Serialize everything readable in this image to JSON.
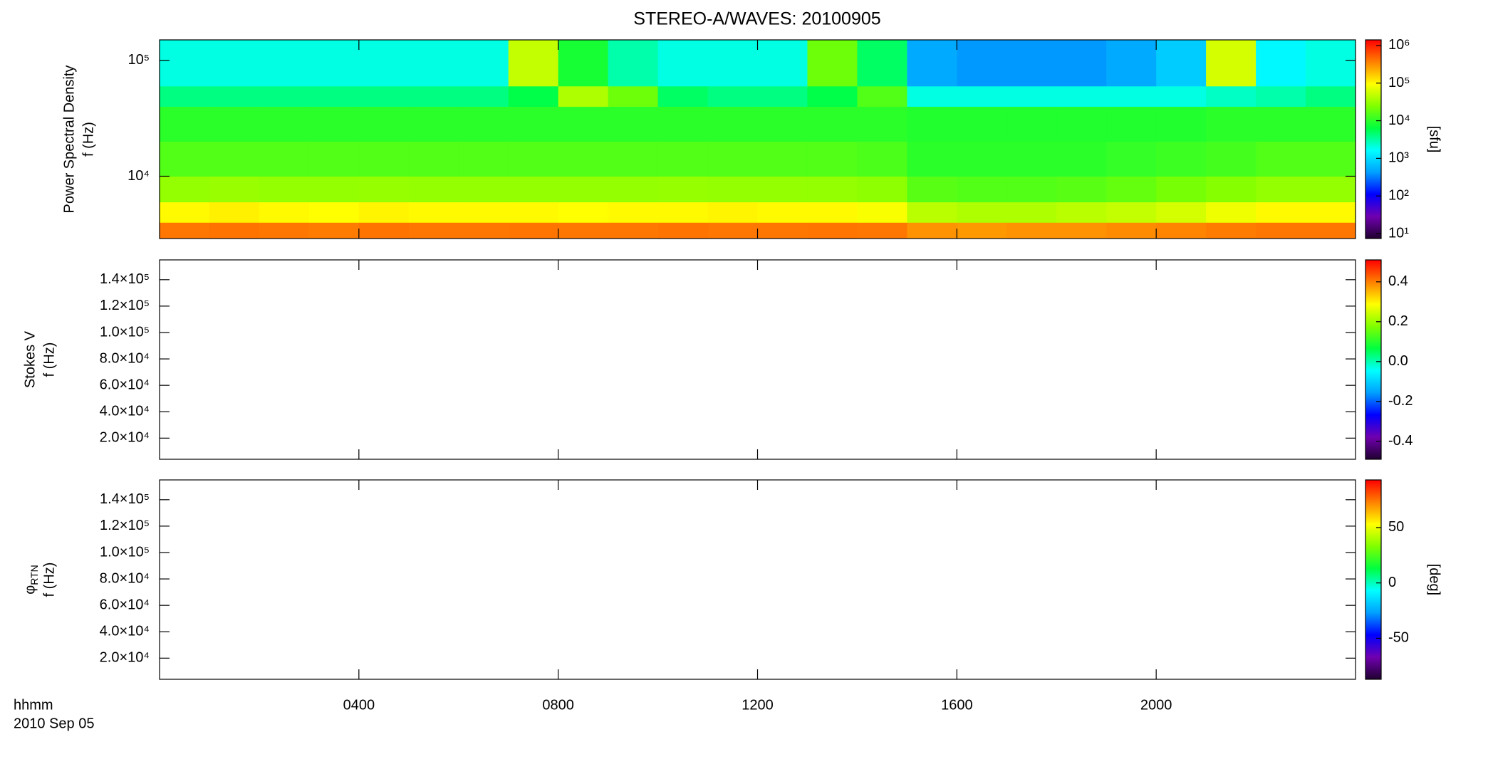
{
  "chart_data": {
    "type": "heatmap",
    "title": "STEREO-A/WAVES: 20100905",
    "x_label_lines": [
      "hhmm",
      "2010 Sep 05"
    ],
    "xlim": [
      0,
      24
    ],
    "xticks": [
      {
        "value": 4,
        "label": "0400"
      },
      {
        "value": 8,
        "label": "0800"
      },
      {
        "value": 12,
        "label": "1200"
      },
      {
        "value": 16,
        "label": "1600"
      },
      {
        "value": 20,
        "label": "2000"
      }
    ],
    "colormap": [
      "#200030",
      "#7000b0",
      "#0000ff",
      "#00a0ff",
      "#00ffff",
      "#00ff40",
      "#80ff00",
      "#ffff00",
      "#ff8000",
      "#ff0000"
    ],
    "panels": [
      {
        "ylabel": [
          "Power Spectral Density",
          "f (Hz)"
        ],
        "yscale": "log",
        "ylim": [
          2900,
          150000
        ],
        "yticks": [
          {
            "value": 10000,
            "label": "10⁴"
          },
          {
            "value": 100000,
            "label": "10⁵"
          }
        ],
        "colorbar": {
          "scale": "log",
          "clim": [
            7.4,
            1410000
          ],
          "label": "[sfu]",
          "ticks": [
            {
              "value": 10,
              "label": "10¹"
            },
            {
              "value": 100,
              "label": "10²"
            },
            {
              "value": 1000,
              "label": "10³"
            },
            {
              "value": 10000,
              "label": "10⁴"
            },
            {
              "value": 100000,
              "label": "10⁵"
            },
            {
              "value": 1000000,
              "label": "10⁶"
            }
          ]
        },
        "heatmap": {
          "x_bins": [
            0,
            1,
            2,
            3,
            4,
            5,
            6,
            7,
            8,
            9,
            10,
            11,
            12,
            13,
            14,
            15,
            16,
            17,
            18,
            19,
            20,
            21,
            22,
            23,
            24
          ],
          "y_bins": [
            2900,
            4000,
            6000,
            10000,
            20000,
            40000,
            60000,
            150000
          ],
          "values": [
            [
              400000,
              420000,
              400000,
              380000,
              420000,
              400000,
              400000,
              410000,
              400000,
              400000,
              420000,
              400000,
              400000,
              410000,
              400000,
              300000,
              280000,
              300000,
              300000,
              320000,
              350000,
              380000,
              400000,
              400000
            ],
            [
              100000,
              110000,
              100000,
              95000,
              105000,
              100000,
              100000,
              100000,
              95000,
              100000,
              100000,
              105000,
              100000,
              100000,
              90000,
              45000,
              40000,
              40000,
              45000,
              50000,
              60000,
              80000,
              100000,
              100000
            ],
            [
              30000,
              32000,
              30000,
              30000,
              31000,
              30000,
              30000,
              30000,
              30000,
              30000,
              31000,
              30000,
              30000,
              30000,
              28000,
              16000,
              15000,
              15000,
              16000,
              18000,
              22000,
              26000,
              30000,
              30000
            ],
            [
              15000,
              15000,
              15000,
              15000,
              15000,
              15000,
              15000,
              15000,
              15000,
              15000,
              15000,
              15000,
              15000,
              15000,
              14000,
              10000,
              10000,
              10000,
              10000,
              11000,
              12000,
              13000,
              15000,
              15000
            ],
            [
              10000,
              10000,
              10000,
              10000,
              10000,
              10000,
              10000,
              10000,
              10000,
              10000,
              10000,
              10000,
              10000,
              10000,
              10000,
              9000,
              9000,
              9000,
              9000,
              9000,
              9000,
              10000,
              10000,
              10000
            ],
            [
              4000,
              4000,
              4000,
              4000,
              4000,
              4000,
              4000,
              6000,
              40000,
              20000,
              5000,
              4000,
              4000,
              6000,
              15000,
              2000,
              2000,
              2000,
              2000,
              2000,
              2000,
              2500,
              3000,
              4000
            ],
            [
              2000,
              2000,
              2000,
              2000,
              2000,
              2000,
              2000,
              50000,
              8000,
              3000,
              2000,
              2000,
              2000,
              20000,
              5000,
              500,
              400,
              400,
              400,
              500,
              800,
              60000,
              1500,
              2000
            ]
          ]
        }
      },
      {
        "ylabel": [
          "Stokes V",
          "f (Hz)"
        ],
        "yscale": "linear",
        "ylim": [
          4000,
          155000
        ],
        "yticks": [
          {
            "value": 20000,
            "label": "2.0×10⁴"
          },
          {
            "value": 40000,
            "label": "4.0×10⁴"
          },
          {
            "value": 60000,
            "label": "6.0×10⁴"
          },
          {
            "value": 80000,
            "label": "8.0×10⁴"
          },
          {
            "value": 100000,
            "label": "1.0×10⁵"
          },
          {
            "value": 120000,
            "label": "1.2×10⁵"
          },
          {
            "value": 140000,
            "label": "1.4×10⁵"
          }
        ],
        "colorbar": {
          "scale": "linear",
          "clim": [
            -0.49,
            0.51
          ],
          "ticks": [
            -0.4,
            -0.2,
            {
              "value": 0,
              "label": "0.0"
            },
            0.2,
            0.4
          ]
        }
      },
      {
        "ylabel": [
          "φ",
          "f (Hz)"
        ],
        "ylabel_subscript": "RTN",
        "yscale": "linear",
        "ylim": [
          4000,
          155000
        ],
        "yticks": [
          {
            "value": 20000,
            "label": "2.0×10⁴"
          },
          {
            "value": 40000,
            "label": "4.0×10⁴"
          },
          {
            "value": 60000,
            "label": "6.0×10⁴"
          },
          {
            "value": 80000,
            "label": "8.0×10⁴"
          },
          {
            "value": 100000,
            "label": "1.0×10⁵"
          },
          {
            "value": 120000,
            "label": "1.2×10⁵"
          },
          {
            "value": 140000,
            "label": "1.4×10⁵"
          }
        ],
        "colorbar": {
          "scale": "linear",
          "clim": [
            -87,
            93
          ],
          "label": "[deg]",
          "ticks": [
            -50,
            0,
            50
          ]
        }
      }
    ]
  }
}
